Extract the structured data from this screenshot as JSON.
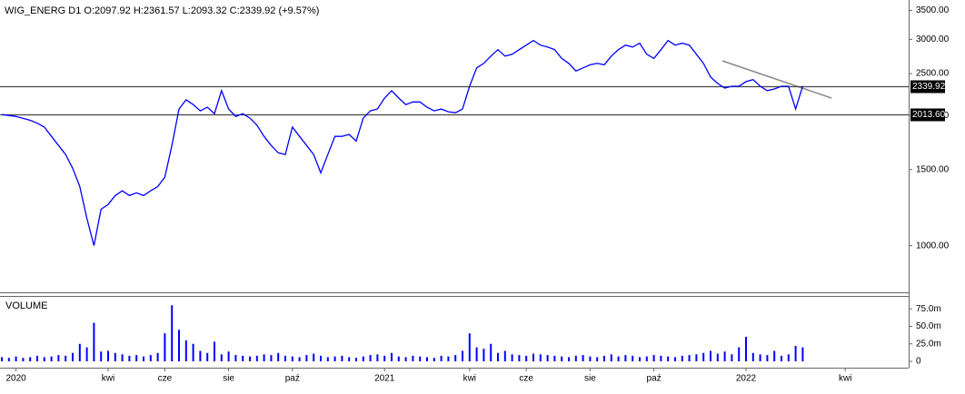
{
  "chart_data": {
    "type": "line",
    "title": "WIG_ENERG  D1  O:2097.92  H:2361.57  L:2093.32  C:2339.92  (+9.57%)",
    "categories": [
      null,
      null,
      "2020",
      null,
      null,
      null,
      null,
      null,
      null,
      null,
      null,
      null,
      null,
      null,
      null,
      "kwi",
      null,
      null,
      null,
      null,
      null,
      null,
      null,
      "cze",
      null,
      null,
      null,
      null,
      null,
      null,
      null,
      null,
      "sie",
      null,
      null,
      null,
      null,
      null,
      null,
      null,
      null,
      "paź",
      null,
      null,
      null,
      null,
      null,
      null,
      null,
      null,
      null,
      null,
      null,
      null,
      "2021",
      null,
      null,
      null,
      null,
      null,
      null,
      null,
      null,
      null,
      null,
      null,
      "kwi",
      null,
      null,
      null,
      null,
      null,
      null,
      null,
      "cze",
      null,
      null,
      null,
      null,
      null,
      null,
      null,
      null,
      "sie",
      null,
      null,
      null,
      null,
      null,
      null,
      null,
      null,
      "paź",
      null,
      null,
      null,
      null,
      null,
      null,
      null,
      null,
      null,
      null,
      null,
      null,
      "2022",
      null,
      null,
      null,
      null,
      null,
      null,
      null,
      null,
      null,
      null,
      null,
      null,
      null,
      "kwi",
      null,
      null,
      null,
      null,
      null,
      null,
      null,
      null
    ],
    "log_scale": true,
    "ylim": [
      780,
      3700
    ],
    "yticks": [
      {
        "value": 1000,
        "label": "1000.00"
      },
      {
        "value": 1500,
        "label": "1500.00"
      },
      {
        "value": 2000,
        "label": "2000.00"
      },
      {
        "value": 2500,
        "label": "2500.00"
      },
      {
        "value": 3000,
        "label": "3000.00"
      },
      {
        "value": 3500,
        "label": "3500.00"
      }
    ],
    "y2lim": [
      -9,
      92
    ],
    "y2ticks": [
      0,
      {
        "value": 25,
        "label": "25.0m"
      },
      {
        "value": 50,
        "label": "50.0m"
      },
      {
        "value": 75,
        "label": "75.0m"
      }
    ],
    "levels": [
      2339.92,
      {
        "value": 2013.6,
        "label": "2013.60"
      }
    ],
    "series": [
      {
        "color": "#0000ff",
        "values": [
          2010,
          2000,
          1990,
          1970,
          1950,
          1920,
          1880,
          1790,
          1705,
          1625,
          1510,
          1370,
          1157,
          1000,
          1214,
          1245,
          1306,
          1339,
          1306,
          1325,
          1306,
          1339,
          1370,
          1440,
          1705,
          2070,
          2175,
          2120,
          2050,
          2090,
          2020,
          2283,
          2070,
          1990,
          2020,
          1973,
          1900,
          1790,
          1705,
          1640,
          1625,
          1880,
          1790,
          1705,
          1625,
          1474,
          1625,
          1790,
          1790,
          1808,
          1746,
          1973,
          2050,
          2070,
          2195,
          2283,
          2195,
          2120,
          2150,
          2150,
          2090,
          2050,
          2070,
          2040,
          2030,
          2070,
          2337,
          2577,
          2640,
          2745,
          2840,
          2745,
          2771,
          2840,
          2910,
          2982,
          2910,
          2880,
          2840,
          2710,
          2640,
          2535,
          2577,
          2620,
          2640,
          2620,
          2745,
          2840,
          2910,
          2880,
          2940,
          2771,
          2710,
          2840,
          2982,
          2910,
          2940,
          2910,
          2771,
          2640,
          2455,
          2373,
          2315,
          2337,
          2337,
          2396,
          2421,
          2337,
          2283,
          2304,
          2337,
          2337,
          2070,
          2339.92,
          null,
          null,
          null,
          null,
          null,
          null,
          null,
          null,
          null,
          null,
          null,
          null,
          null,
          null
        ]
      },
      {
        "name": "VOLUME",
        "type": "bar",
        "axis": "y2",
        "color": "#0000ff",
        "values": [
          6,
          5,
          7,
          5,
          6,
          8,
          6,
          7,
          9,
          8,
          12,
          25,
          20,
          55,
          14,
          15,
          12,
          10,
          8,
          9,
          7,
          9,
          12,
          40,
          80,
          45,
          30,
          25,
          15,
          12,
          28,
          10,
          14,
          9,
          8,
          7,
          8,
          10,
          9,
          12,
          8,
          7,
          6,
          9,
          11,
          8,
          6,
          7,
          8,
          6,
          5,
          7,
          9,
          10,
          8,
          12,
          7,
          6,
          8,
          7,
          6,
          5,
          8,
          7,
          9,
          15,
          40,
          20,
          18,
          25,
          12,
          15,
          10,
          9,
          8,
          11,
          10,
          9,
          8,
          7,
          6,
          8,
          9,
          7,
          6,
          8,
          10,
          7,
          9,
          8,
          6,
          7,
          9,
          8,
          7,
          6,
          8,
          9,
          10,
          12,
          15,
          11,
          14,
          10,
          20,
          35,
          12,
          10,
          9,
          15,
          8,
          10,
          22,
          20,
          null,
          null,
          null,
          null,
          null,
          null,
          null,
          null,
          null,
          null,
          null,
          null,
          null,
          null
        ]
      }
    ]
  }
}
